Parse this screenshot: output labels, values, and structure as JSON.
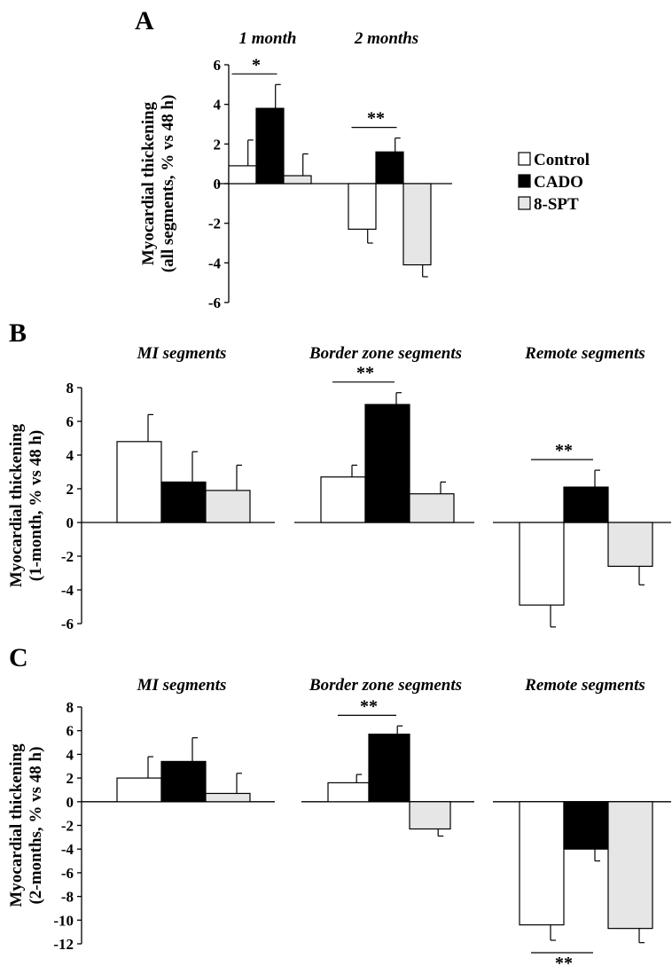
{
  "colors": {
    "Control": "#ffffff",
    "CADO": "#000000",
    "8-SPT": "#e6e6e6",
    "stroke": "#000000"
  },
  "legend": {
    "items": [
      "Control",
      "CADO",
      "8-SPT"
    ]
  },
  "chart_data": [
    {
      "id": "A",
      "type": "bar",
      "panel_label": "A",
      "ylabel_lines": [
        "Myocardial thickening",
        "(all segments, % vs 48 h)"
      ],
      "ylim": [
        -6,
        6
      ],
      "yticks": [
        6,
        4,
        2,
        0,
        -2,
        -4,
        -6
      ],
      "groups": [
        {
          "title": "1 month",
          "series": [
            {
              "name": "Control",
              "value": 0.9,
              "error": 1.3
            },
            {
              "name": "CADO",
              "value": 3.8,
              "error": 1.2
            },
            {
              "name": "8-SPT",
              "value": 0.4,
              "error": 1.1
            }
          ],
          "significance": {
            "label": "*",
            "between": [
              "Control",
              "CADO"
            ]
          }
        },
        {
          "title": "2 months",
          "series": [
            {
              "name": "Control",
              "value": -2.3,
              "error": 0.7
            },
            {
              "name": "CADO",
              "value": 1.6,
              "error": 0.7
            },
            {
              "name": "8-SPT",
              "value": -4.1,
              "error": 0.6
            }
          ],
          "significance": {
            "label": "**",
            "between": [
              "Control",
              "CADO"
            ]
          }
        }
      ]
    },
    {
      "id": "B",
      "type": "bar",
      "panel_label": "B",
      "ylabel_lines": [
        "Myocardial thickening",
        "(1-month, % vs 48 h)"
      ],
      "ylim": [
        -6,
        8
      ],
      "yticks": [
        8,
        6,
        4,
        2,
        0,
        -2,
        -4,
        -6
      ],
      "groups": [
        {
          "title": "MI segments",
          "series": [
            {
              "name": "Control",
              "value": 4.8,
              "error": 1.6
            },
            {
              "name": "CADO",
              "value": 2.4,
              "error": 1.8
            },
            {
              "name": "8-SPT",
              "value": 1.9,
              "error": 1.5
            }
          ]
        },
        {
          "title": "Border zone segments",
          "series": [
            {
              "name": "Control",
              "value": 2.7,
              "error": 0.7
            },
            {
              "name": "CADO",
              "value": 7.0,
              "error": 0.7
            },
            {
              "name": "8-SPT",
              "value": 1.7,
              "error": 0.7
            }
          ],
          "significance": {
            "label": "**",
            "between": [
              "Control",
              "CADO"
            ]
          }
        },
        {
          "title": "Remote segments",
          "series": [
            {
              "name": "Control",
              "value": -4.9,
              "error": 1.3
            },
            {
              "name": "CADO",
              "value": 2.1,
              "error": 1.0
            },
            {
              "name": "8-SPT",
              "value": -2.6,
              "error": 1.1
            }
          ],
          "significance": {
            "label": "**",
            "between": [
              "Control",
              "CADO"
            ]
          }
        }
      ]
    },
    {
      "id": "C",
      "type": "bar",
      "panel_label": "C",
      "ylabel_lines": [
        "Myocardial thickening",
        "(2-months, % vs 48 h)"
      ],
      "ylim": [
        -12,
        8
      ],
      "yticks": [
        8,
        6,
        4,
        2,
        0,
        -2,
        -4,
        -6,
        -8,
        -10,
        -12
      ],
      "groups": [
        {
          "title": "MI segments",
          "series": [
            {
              "name": "Control",
              "value": 2.0,
              "error": 1.8
            },
            {
              "name": "CADO",
              "value": 3.4,
              "error": 2.0
            },
            {
              "name": "8-SPT",
              "value": 0.7,
              "error": 1.7
            }
          ]
        },
        {
          "title": "Border zone segments",
          "series": [
            {
              "name": "Control",
              "value": 1.6,
              "error": 0.7
            },
            {
              "name": "CADO",
              "value": 5.7,
              "error": 0.7
            },
            {
              "name": "8-SPT",
              "value": -2.3,
              "error": 0.6
            }
          ],
          "significance": {
            "label": "**",
            "between": [
              "Control",
              "CADO"
            ]
          }
        },
        {
          "title": "Remote segments",
          "series": [
            {
              "name": "Control",
              "value": -10.4,
              "error": 1.3
            },
            {
              "name": "CADO",
              "value": -4.0,
              "error": 1.0
            },
            {
              "name": "8-SPT",
              "value": -10.7,
              "error": 1.2
            }
          ],
          "significance": {
            "label": "**",
            "between": [
              "Control",
              "CADO"
            ]
          }
        }
      ]
    }
  ]
}
